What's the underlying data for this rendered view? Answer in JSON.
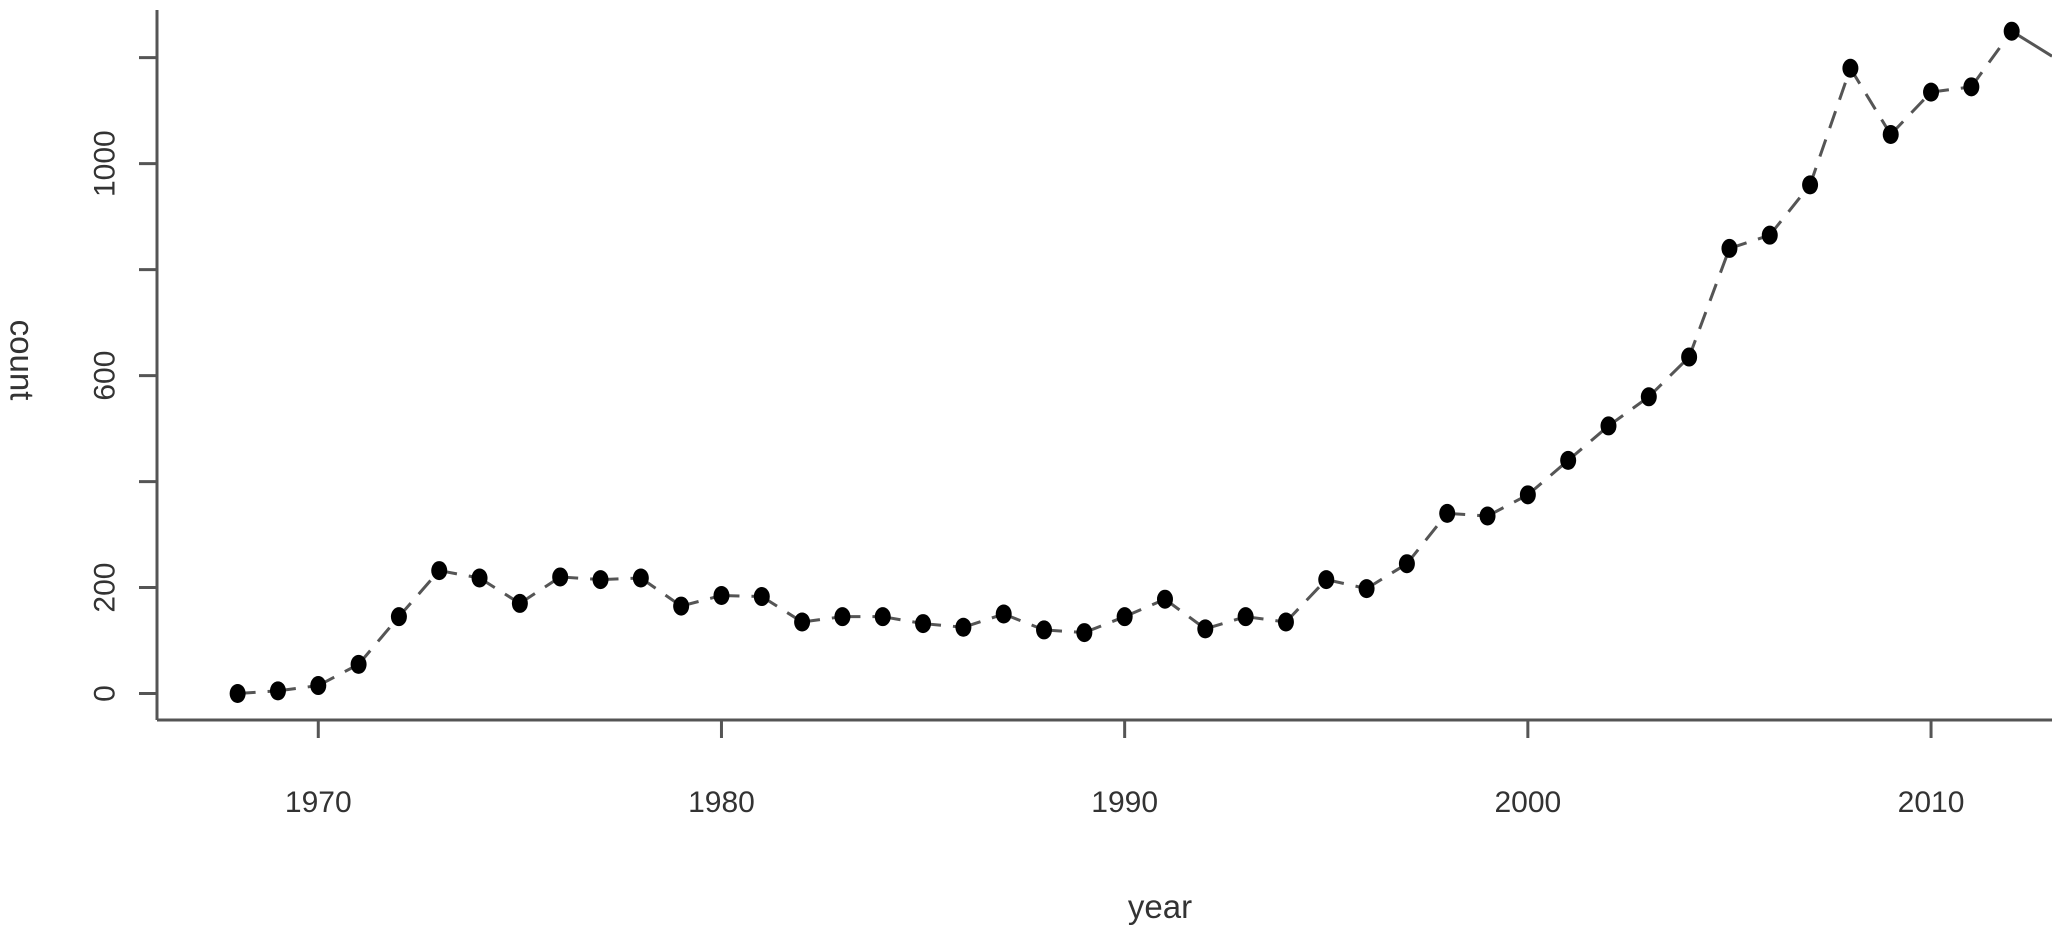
{
  "chart_data": {
    "type": "line",
    "title": "",
    "xlabel": "year",
    "ylabel": "count",
    "xlim": [
      1966,
      2013
    ],
    "ylim": [
      -50,
      1290
    ],
    "xticks": [
      1970,
      1980,
      1990,
      2000,
      2010
    ],
    "yticks": [
      0,
      200,
      600,
      1000
    ],
    "grid": false,
    "series": [
      {
        "x": [
          1968,
          1969,
          1970,
          1971,
          1972,
          1973,
          1974,
          1975,
          1976,
          1977,
          1978,
          1979,
          1980,
          1981,
          1982,
          1983,
          1984,
          1985,
          1986,
          1987,
          1988,
          1989,
          1990,
          1991,
          1992,
          1993,
          1994,
          1995,
          1996,
          1997,
          1998,
          1999,
          2000,
          2001,
          2002,
          2003,
          2004,
          2005,
          2006,
          2007,
          2008,
          2009,
          2010,
          2011,
          2012
        ],
        "y": [
          0,
          5,
          15,
          55,
          145,
          232,
          218,
          170,
          220,
          215,
          218,
          165,
          185,
          183,
          135,
          145,
          145,
          132,
          125,
          150,
          120,
          115,
          145,
          178,
          122,
          145,
          135,
          215,
          198,
          245,
          340,
          335,
          375,
          440,
          505,
          560,
          635,
          840,
          865,
          960,
          1180,
          1055,
          1135,
          1145,
          1250
        ]
      }
    ]
  },
  "colors": {
    "line": "#555555",
    "marker": "#000000",
    "axis": "#555555",
    "text": "#333333"
  }
}
